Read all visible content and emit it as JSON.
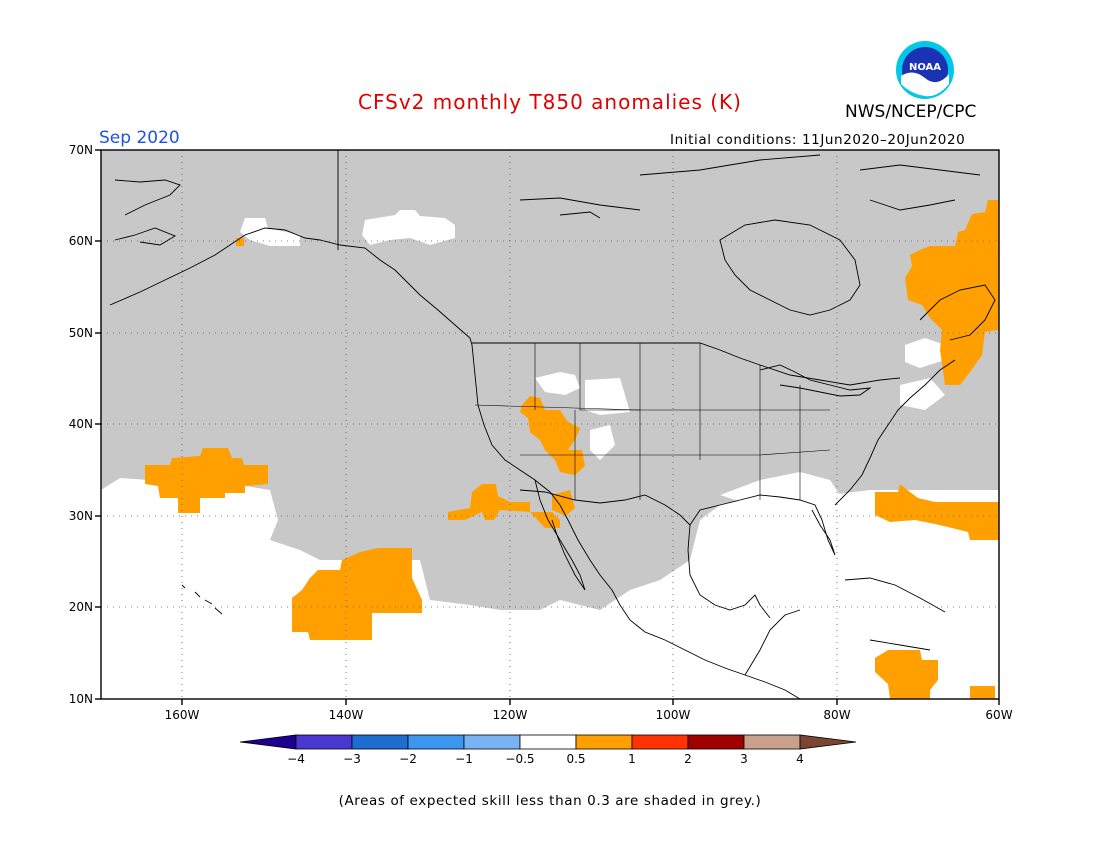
{
  "header": {
    "title": "CFSv2 monthly T850 anomalies (K)",
    "organization": "NWS/NCEP/CPC",
    "month": "Sep 2020",
    "initial_conditions": "Initial conditions: 11Jun2020–20Jun2020",
    "logo_text": "NOAA"
  },
  "map": {
    "lat_labels": [
      "70N",
      "60N",
      "50N",
      "40N",
      "30N",
      "20N",
      "10N"
    ],
    "lon_labels": [
      "160W",
      "140W",
      "120W",
      "100W",
      "80W",
      "60W"
    ],
    "colors": {
      "grey_low_skill": "#c8c8c8",
      "neutral": "#ffffff",
      "warm_0_5_to_1": "#ffa000",
      "coastline": "#000000"
    }
  },
  "colorbar": {
    "labels": [
      "−4",
      "−3",
      "−2",
      "−1",
      "−0.5",
      "0.5",
      "1",
      "2",
      "3",
      "4"
    ],
    "colors": [
      "#1e0090",
      "#4838d0",
      "#1e6ed2",
      "#3c96f0",
      "#78b4f4",
      "#ffffff",
      "#ffa000",
      "#ff3200",
      "#a00000",
      "#c8a08c",
      "#7a4632"
    ]
  },
  "footnote": "(Areas of expected skill less than 0.3 are shaded in grey.)"
}
